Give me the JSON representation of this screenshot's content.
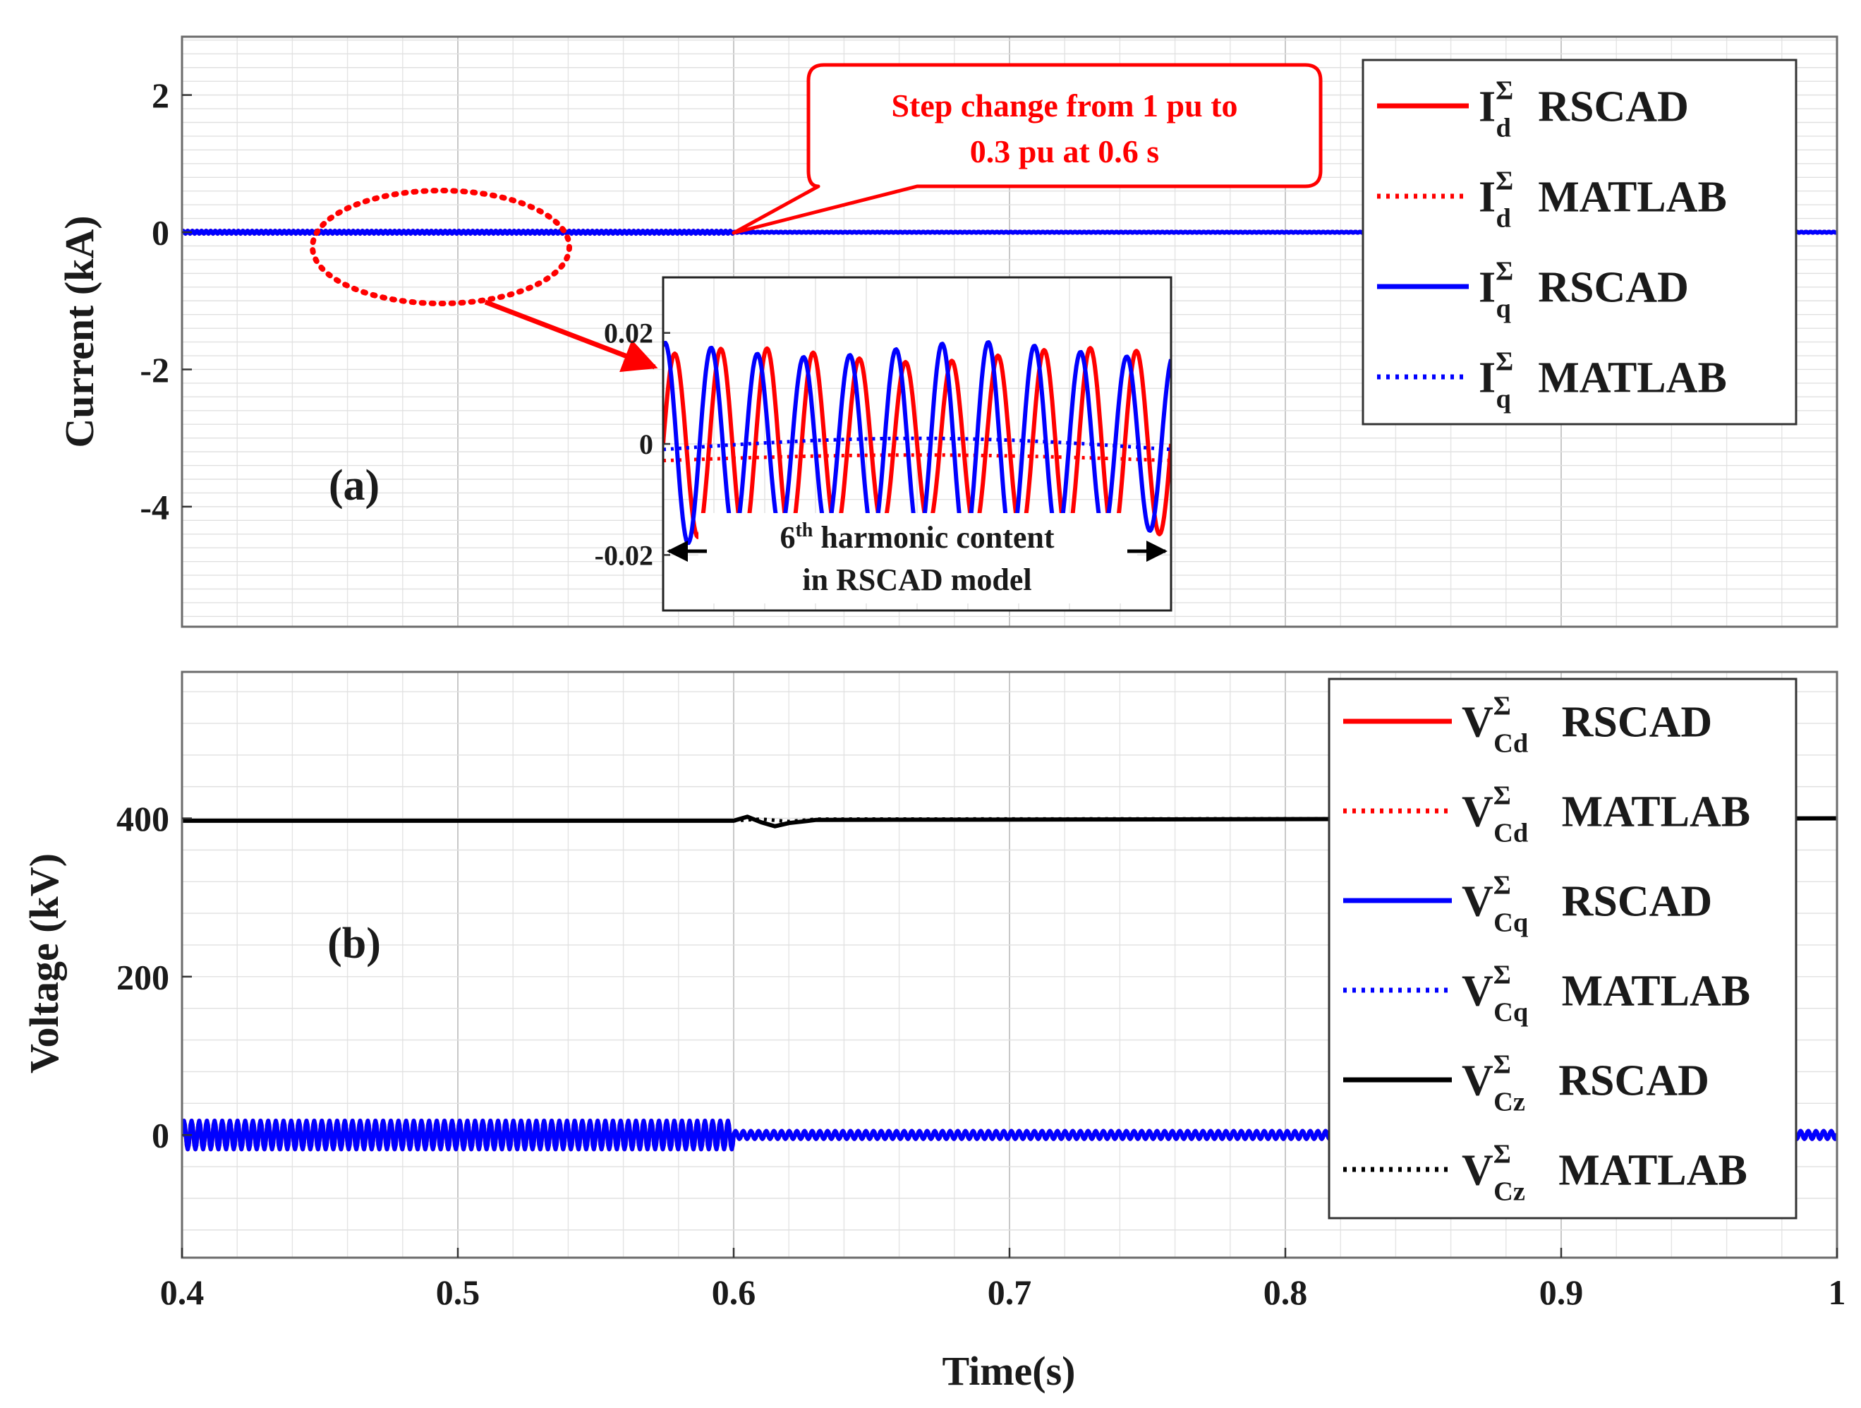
{
  "chart_data": [
    {
      "id": "a",
      "type": "line",
      "panel_label": "(a)",
      "ylabel": "Current (kA)",
      "xlim": [
        0.4,
        1.0
      ],
      "ylim": [
        -5.75,
        2.85
      ],
      "yticks": [
        2,
        0,
        -2,
        -4
      ],
      "ytick_labels": [
        "2",
        "0",
        "-2",
        "-4"
      ],
      "grid": true,
      "series": [
        {
          "name": "I_d^Σ RSCAD",
          "color": "#ff0000",
          "style": "solid",
          "segments": [
            {
              "x": [
                0.4,
                0.6
              ],
              "y": [
                0.0,
                0.0
              ],
              "ripple": 0.02,
              "cycles": 120
            },
            {
              "x": [
                0.6,
                1.0
              ],
              "y": [
                0.0,
                0.0
              ],
              "ripple": 0.006,
              "cycles": 240
            }
          ]
        },
        {
          "name": "I_d^Σ MATLAB",
          "color": "#ff0000",
          "style": "dotted",
          "segments": [
            {
              "x": [
                0.4,
                1.0
              ],
              "y": [
                0.0,
                0.0
              ],
              "ripple": 0,
              "cycles": 0
            }
          ]
        },
        {
          "name": "I_q^Σ RSCAD",
          "color": "#0000ff",
          "style": "solid",
          "segments": [
            {
              "x": [
                0.4,
                0.6
              ],
              "y": [
                0.0,
                0.0
              ],
              "ripple": 0.02,
              "cycles": 120
            },
            {
              "x": [
                0.6,
                1.0
              ],
              "y": [
                0.0,
                0.0
              ],
              "ripple": 0.006,
              "cycles": 240
            }
          ]
        },
        {
          "name": "I_q^Σ MATLAB",
          "color": "#0000ff",
          "style": "dotted",
          "segments": [
            {
              "x": [
                0.4,
                1.0
              ],
              "y": [
                0.0,
                0.0
              ],
              "ripple": 0,
              "cycles": 0
            }
          ]
        }
      ],
      "legend": {
        "placement": "top-right",
        "entries": [
          {
            "base": "I",
            "sup": "Σ",
            "sub": "d",
            "label": "RSCAD",
            "color": "#ff0000",
            "style": "solid"
          },
          {
            "base": "I",
            "sup": "Σ",
            "sub": "d",
            "label": "MATLAB",
            "color": "#ff0000",
            "style": "dotted"
          },
          {
            "base": "I",
            "sup": "Σ",
            "sub": "q",
            "label": "RSCAD",
            "color": "#0000ff",
            "style": "solid"
          },
          {
            "base": "I",
            "sup": "Σ",
            "sub": "q",
            "label": "MATLAB",
            "color": "#0000ff",
            "style": "dotted"
          }
        ]
      },
      "callout": {
        "text_line1": "Step change from 1 pu to",
        "text_line2": "0.3 pu at 0.6 s",
        "color": "#ff0000",
        "points_to_x": 0.6,
        "points_to_y": 0
      },
      "zoom_ellipse": {
        "x_center": 0.5,
        "y_center": 0.0,
        "color": "#ff0000"
      },
      "inset": {
        "ylim": [
          -0.03,
          0.03
        ],
        "yticks": [
          0.02,
          0,
          -0.02
        ],
        "ytick_labels": [
          "0.02",
          "0",
          "-0.02"
        ],
        "cycles": 11,
        "series": [
          {
            "name": "I_d^Σ RSCAD",
            "color": "#ff0000",
            "style": "solid",
            "amplitude": 0.016,
            "phase_deg": 0
          },
          {
            "name": "I_d^Σ MATLAB",
            "color": "#ff0000",
            "style": "dotted",
            "offset": -0.003,
            "drift": 0.001
          },
          {
            "name": "I_q^Σ RSCAD",
            "color": "#0000ff",
            "style": "solid",
            "amplitude": 0.017,
            "phase_deg": 75
          },
          {
            "name": "I_q^Σ MATLAB",
            "color": "#0000ff",
            "style": "dotted",
            "offset": -0.001,
            "drift": 0.002
          }
        ],
        "annotation_line1_base": "6",
        "annotation_line1_sup": "th",
        "annotation_line1_rest": " harmonic content",
        "annotation_line2": "in RSCAD model"
      }
    },
    {
      "id": "b",
      "type": "line",
      "panel_label": "(b)",
      "ylabel": "Voltage (kV)",
      "xlabel": "Time(s)",
      "xlim": [
        0.4,
        1.0
      ],
      "xticks": [
        0.4,
        0.5,
        0.6,
        0.7,
        0.8,
        0.9,
        1.0
      ],
      "xtick_labels": [
        "0.4",
        "0.5",
        "0.6",
        "0.7",
        "0.8",
        "0.9",
        "1"
      ],
      "ylim": [
        -155,
        585
      ],
      "yticks": [
        400,
        200,
        0
      ],
      "ytick_labels": [
        "400",
        "200",
        "0"
      ],
      "grid": true,
      "series": [
        {
          "name": "V_Cd^Σ RSCAD",
          "color": "#ff0000",
          "style": "solid",
          "segments": [
            {
              "x": [
                0.4,
                0.6
              ],
              "y": [
                0.0,
                0.0
              ],
              "ripple": 18,
              "cycles": 72
            },
            {
              "x": [
                0.6,
                1.0
              ],
              "y": [
                0.0,
                0.0
              ],
              "ripple": 5,
              "cycles": 144
            }
          ]
        },
        {
          "name": "V_Cd^Σ MATLAB",
          "color": "#ff0000",
          "style": "dotted",
          "segments": [
            {
              "x": [
                0.4,
                1.0
              ],
              "y": [
                0.0,
                0.0
              ],
              "ripple": 0,
              "cycles": 0
            }
          ]
        },
        {
          "name": "V_Cq^Σ RSCAD",
          "color": "#0000ff",
          "style": "solid",
          "segments": [
            {
              "x": [
                0.4,
                0.6
              ],
              "y": [
                0.0,
                0.0
              ],
              "ripple": 18,
              "cycles": 72
            },
            {
              "x": [
                0.6,
                1.0
              ],
              "y": [
                0.0,
                0.0
              ],
              "ripple": 5,
              "cycles": 144
            }
          ]
        },
        {
          "name": "V_Cq^Σ MATLAB",
          "color": "#0000ff",
          "style": "dotted",
          "segments": [
            {
              "x": [
                0.4,
                1.0
              ],
              "y": [
                0.0,
                0.0
              ],
              "ripple": 0,
              "cycles": 0
            }
          ]
        },
        {
          "name": "V_Cz^Σ RSCAD",
          "color": "#000000",
          "style": "solid",
          "points": {
            "x": [
              0.4,
              0.6,
              0.605,
              0.61,
              0.615,
              0.62,
              0.63,
              1.0
            ],
            "y": [
              397,
              397,
              402,
              395,
              390,
              394,
              398,
              400
            ]
          }
        },
        {
          "name": "V_Cz^Σ MATLAB",
          "color": "#000000",
          "style": "dotted",
          "points": {
            "x": [
              0.4,
              0.6,
              0.61,
              0.62,
              0.63,
              1.0
            ],
            "y": [
              397,
              397,
              399,
              396,
              399,
              400
            ]
          }
        }
      ],
      "legend": {
        "placement": "top-right",
        "entries": [
          {
            "base": "V",
            "sup": "Σ",
            "sub": "Cd",
            "label": "RSCAD",
            "color": "#ff0000",
            "style": "solid"
          },
          {
            "base": "V",
            "sup": "Σ",
            "sub": "Cd",
            "label": "MATLAB",
            "color": "#ff0000",
            "style": "dotted"
          },
          {
            "base": "V",
            "sup": "Σ",
            "sub": "Cq",
            "label": "RSCAD",
            "color": "#0000ff",
            "style": "solid"
          },
          {
            "base": "V",
            "sup": "Σ",
            "sub": "Cq",
            "label": "MATLAB",
            "color": "#0000ff",
            "style": "dotted"
          },
          {
            "base": "V",
            "sup": "Σ",
            "sub": "Cz",
            "label": "RSCAD",
            "color": "#000000",
            "style": "solid"
          },
          {
            "base": "V",
            "sup": "Σ",
            "sub": "Cz",
            "label": "MATLAB",
            "color": "#000000",
            "style": "dotted"
          }
        ]
      }
    }
  ]
}
